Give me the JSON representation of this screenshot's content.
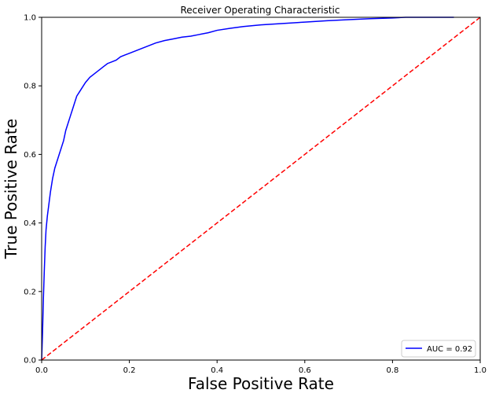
{
  "chart_data": {
    "type": "line",
    "title": "Receiver Operating Characteristic",
    "xlabel": "False Positive Rate",
    "ylabel": "True Positive Rate",
    "xlim": [
      0.0,
      1.0
    ],
    "ylim": [
      0.0,
      1.0
    ],
    "xticks": [
      "0.0",
      "0.2",
      "0.4",
      "0.6",
      "0.8",
      "1.0"
    ],
    "yticks": [
      "0.0",
      "0.2",
      "0.4",
      "0.6",
      "0.8",
      "1.0"
    ],
    "grid": false,
    "legend_position": "lower-right",
    "series": [
      {
        "name": "AUC = 0.92",
        "color": "#0000ff",
        "style": "solid",
        "x": [
          0.0,
          0.002,
          0.004,
          0.006,
          0.008,
          0.01,
          0.013,
          0.016,
          0.02,
          0.025,
          0.03,
          0.035,
          0.04,
          0.045,
          0.05,
          0.055,
          0.06,
          0.065,
          0.07,
          0.075,
          0.08,
          0.085,
          0.09,
          0.1,
          0.11,
          0.12,
          0.13,
          0.14,
          0.15,
          0.16,
          0.17,
          0.18,
          0.19,
          0.2,
          0.22,
          0.24,
          0.26,
          0.28,
          0.3,
          0.32,
          0.34,
          0.36,
          0.38,
          0.4,
          0.43,
          0.46,
          0.5,
          0.55,
          0.6,
          0.65,
          0.7,
          0.75,
          0.8,
          0.83,
          0.86,
          0.9,
          0.94
        ],
        "y": [
          0.0,
          0.08,
          0.18,
          0.26,
          0.33,
          0.38,
          0.42,
          0.45,
          0.49,
          0.53,
          0.56,
          0.58,
          0.6,
          0.62,
          0.64,
          0.67,
          0.69,
          0.71,
          0.73,
          0.75,
          0.77,
          0.78,
          0.79,
          0.81,
          0.825,
          0.835,
          0.845,
          0.855,
          0.865,
          0.87,
          0.875,
          0.885,
          0.89,
          0.895,
          0.905,
          0.915,
          0.925,
          0.932,
          0.937,
          0.942,
          0.945,
          0.95,
          0.955,
          0.962,
          0.968,
          0.973,
          0.978,
          0.982,
          0.986,
          0.99,
          0.993,
          0.996,
          0.998,
          1.0,
          1.0,
          1.0,
          1.0
        ]
      },
      {
        "name": "",
        "color": "#ff0000",
        "style": "dashed",
        "x": [
          0.0,
          1.0
        ],
        "y": [
          0.0,
          1.0
        ]
      }
    ]
  }
}
